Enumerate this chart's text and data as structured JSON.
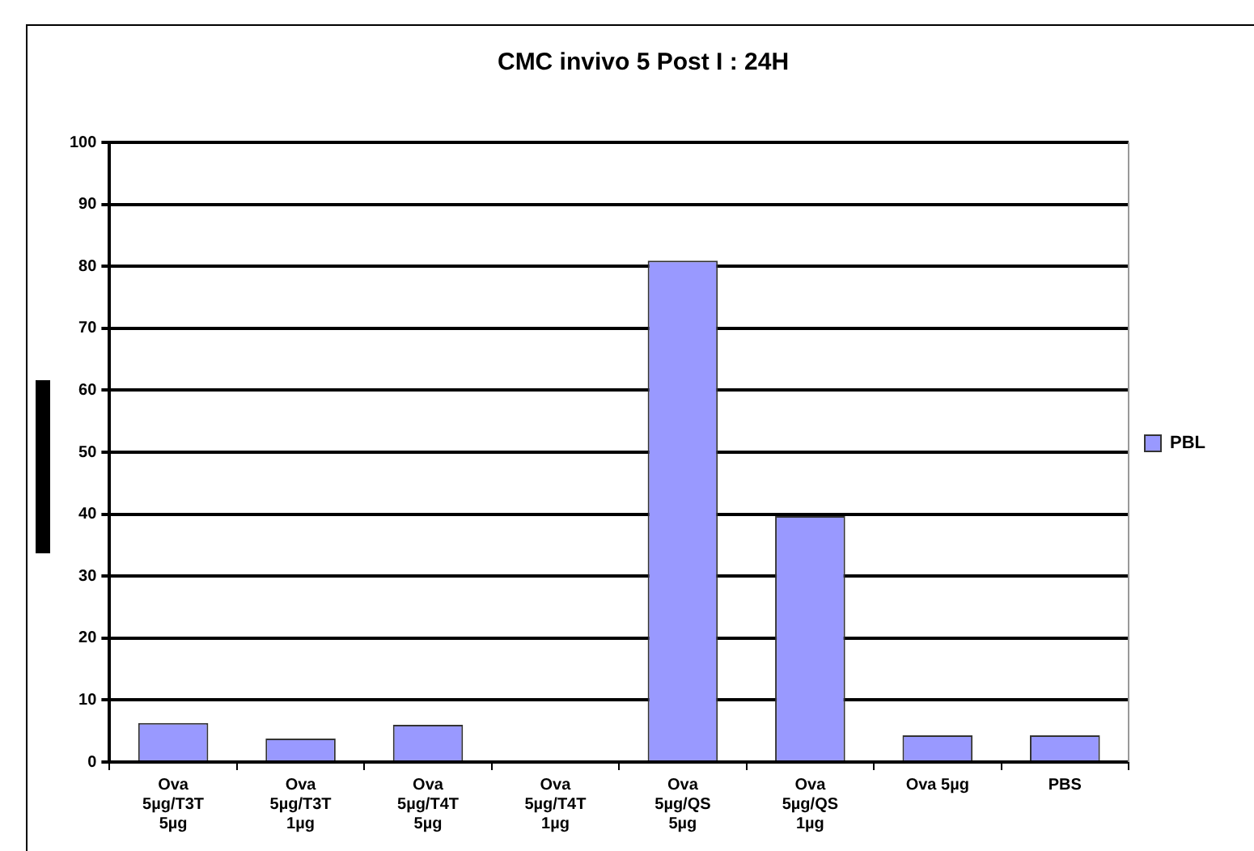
{
  "chart_data": {
    "type": "bar",
    "title": "CMC invivo 5 Post I : 24H",
    "categories": [
      "Ova\n5µg/T3T\n5µg",
      "Ova\n5µg/T3T\n1µg",
      "Ova\n5µg/T4T\n5µg",
      "Ova\n5µg/T4T\n1µg",
      "Ova\n5µg/QS\n5µg",
      "Ova\n5µg/QS\n1µg",
      "Ova 5µg",
      "PBS"
    ],
    "series": [
      {
        "name": "PBL",
        "color": "#9999ff",
        "values": [
          6.3,
          3.8,
          6,
          0,
          80.9,
          39.7,
          4.3,
          4.3
        ]
      }
    ],
    "ylim": [
      0,
      100
    ],
    "yticks": [
      0,
      10,
      20,
      30,
      40,
      50,
      60,
      70,
      80,
      90,
      100
    ],
    "grid": "y",
    "legend": "right"
  }
}
